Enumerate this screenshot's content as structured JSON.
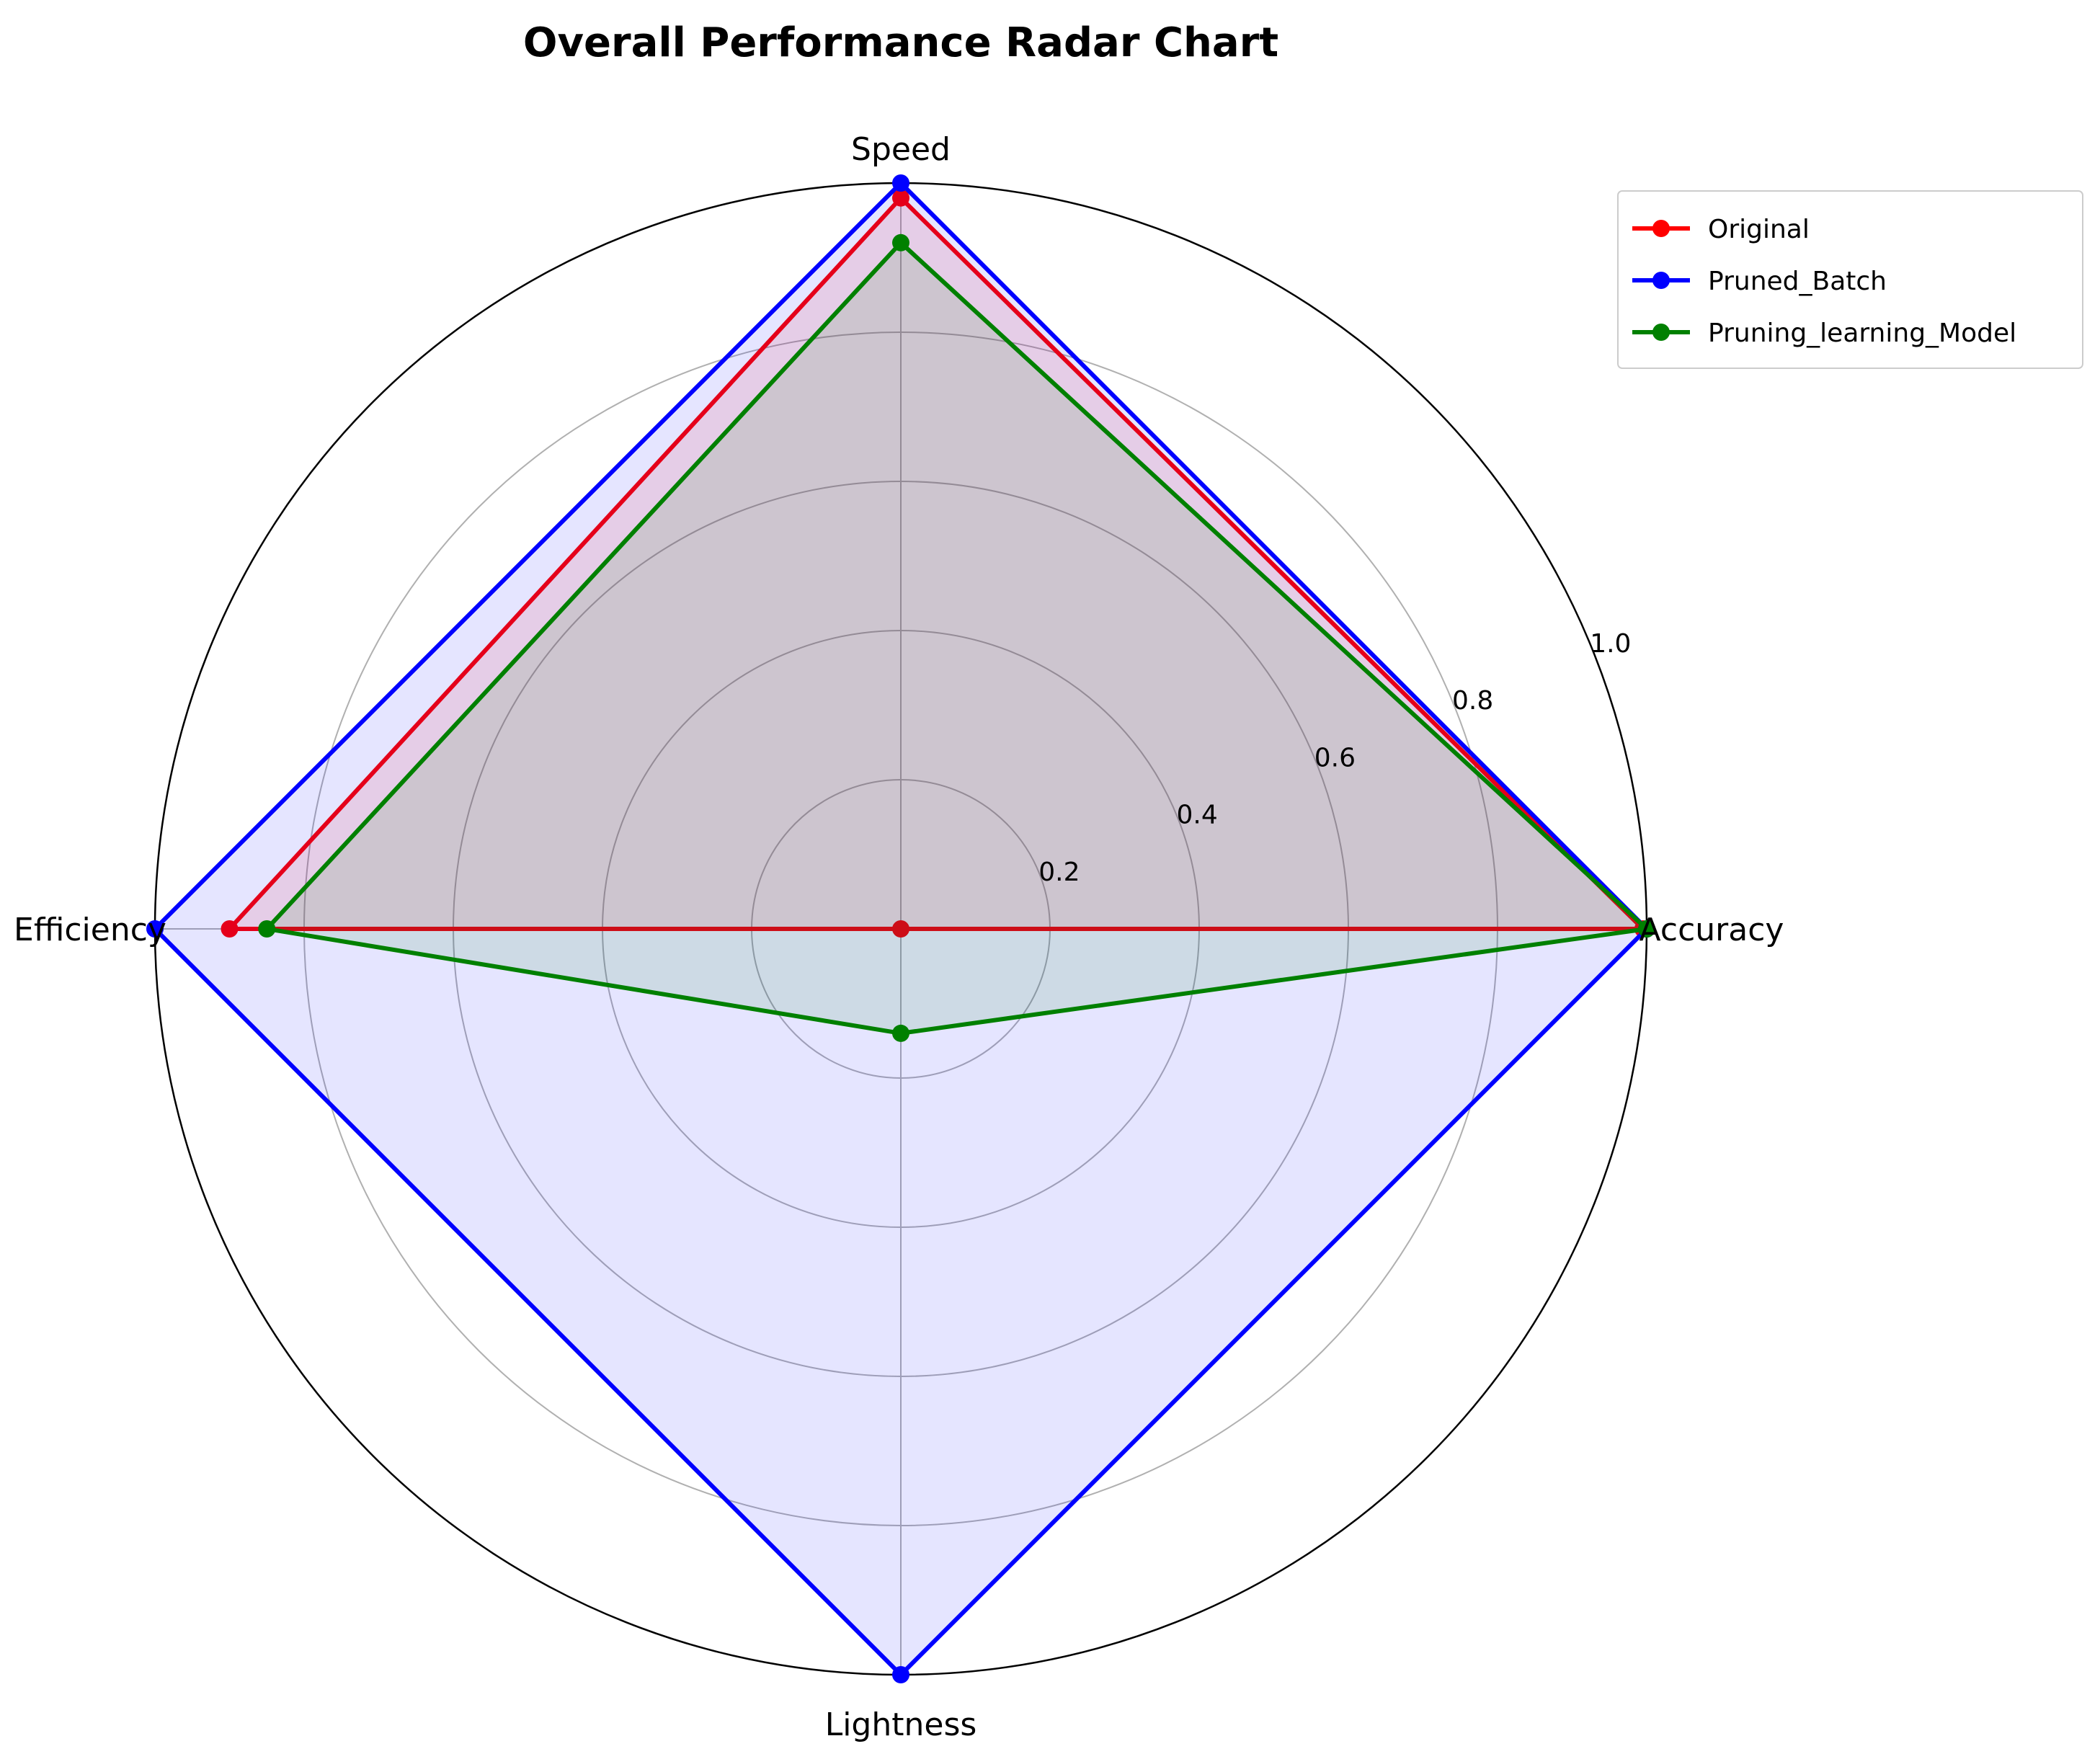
{
  "chart_data": {
    "type": "radar",
    "title": "Overall Performance Radar Chart",
    "axes": [
      "Accuracy",
      "Speed",
      "Efficiency",
      "Lightness"
    ],
    "rlim": [
      0,
      1.0
    ],
    "rticks": [
      "0.2",
      "0.4",
      "0.6",
      "0.8",
      "1.0"
    ],
    "rtick_values": [
      0.2,
      0.4,
      0.6,
      0.8,
      1.0
    ],
    "grid": true,
    "legend_position": "top-right",
    "series": [
      {
        "name": "Original",
        "color": "#ff0000",
        "fill": "#ff0000",
        "values": [
          0.995,
          0.98,
          0.9,
          0.0
        ]
      },
      {
        "name": "Pruned_Batch",
        "color": "#0000ff",
        "fill": "#0000ff",
        "values": [
          1.0,
          1.0,
          1.0,
          1.0
        ]
      },
      {
        "name": "Pruning_learning_Model",
        "color": "#008000",
        "fill": "#008000",
        "values": [
          1.0,
          0.92,
          0.85,
          0.14
        ]
      }
    ]
  }
}
